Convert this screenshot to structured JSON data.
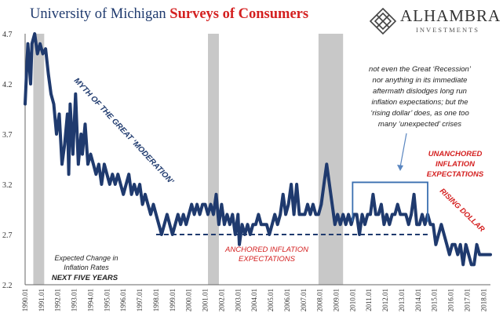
{
  "header": {
    "title_part1": "University of Michigan ",
    "title_part2": "Surveys of Consumers"
  },
  "logo": {
    "name": "ALHAMBRA",
    "subtitle": "INVESTMENTS",
    "icon": "diamond-lattice-icon"
  },
  "colors": {
    "series": "#1f3a6e",
    "recession": "#c8c8c8",
    "annotation_red": "#d42020",
    "bracket": "#3a6fb0",
    "arrow": "#5a86c0"
  },
  "chart_data": {
    "type": "line",
    "ylim": [
      2.2,
      4.7
    ],
    "yticks": [
      "2.2",
      "2.7",
      "3.2",
      "3.7",
      "4.2",
      "4.7"
    ],
    "xlim": [
      "1990-01",
      "2018-06"
    ],
    "xtick_labels": [
      "1990.01",
      "1991.01",
      "1992.01",
      "1993.01",
      "1994.01",
      "1995.01",
      "1996.01",
      "1997.01",
      "1998.01",
      "1999.01",
      "2000.01",
      "2001.01",
      "2002.01",
      "2003.01",
      "2004.01",
      "2005.01",
      "2006.01",
      "2007.01",
      "2008.01",
      "2009.01",
      "2010.01",
      "2011.01",
      "2012.01",
      "2013.01",
      "2014.01",
      "2015.01",
      "2016.01",
      "2017.01",
      "2018.01"
    ],
    "recessions": [
      [
        "1990-07",
        "1991-03"
      ],
      [
        "2001-03",
        "2001-11"
      ],
      [
        "2007-12",
        "2009-06"
      ]
    ],
    "series": [
      {
        "values": [
          [
            "1990-01",
            4.0
          ],
          [
            "1990-03",
            4.6
          ],
          [
            "1990-05",
            4.2
          ],
          [
            "1990-06",
            4.6
          ],
          [
            "1990-08",
            4.7
          ],
          [
            "1990-10",
            4.5
          ],
          [
            "1990-12",
            4.6
          ],
          [
            "1991-02",
            4.5
          ],
          [
            "1991-04",
            4.55
          ],
          [
            "1991-06",
            4.3
          ],
          [
            "1991-08",
            4.1
          ],
          [
            "1991-10",
            4.0
          ],
          [
            "1991-12",
            3.7
          ],
          [
            "1992-02",
            3.9
          ],
          [
            "1992-04",
            3.4
          ],
          [
            "1992-06",
            3.6
          ],
          [
            "1992-08",
            3.9
          ],
          [
            "1992-09",
            3.3
          ],
          [
            "1992-10",
            4.0
          ],
          [
            "1992-12",
            3.5
          ],
          [
            "1993-02",
            4.1
          ],
          [
            "1993-04",
            3.4
          ],
          [
            "1993-06",
            3.7
          ],
          [
            "1993-07",
            3.5
          ],
          [
            "1993-09",
            3.8
          ],
          [
            "1993-11",
            3.4
          ],
          [
            "1994-01",
            3.5
          ],
          [
            "1994-03",
            3.4
          ],
          [
            "1994-05",
            3.3
          ],
          [
            "1994-07",
            3.4
          ],
          [
            "1994-09",
            3.2
          ],
          [
            "1994-11",
            3.4
          ],
          [
            "1995-01",
            3.3
          ],
          [
            "1995-03",
            3.2
          ],
          [
            "1995-05",
            3.3
          ],
          [
            "1995-07",
            3.2
          ],
          [
            "1995-09",
            3.3
          ],
          [
            "1995-11",
            3.2
          ],
          [
            "1996-01",
            3.1
          ],
          [
            "1996-03",
            3.2
          ],
          [
            "1996-05",
            3.3
          ],
          [
            "1996-07",
            3.1
          ],
          [
            "1996-09",
            3.2
          ],
          [
            "1996-11",
            3.1
          ],
          [
            "1997-01",
            3.2
          ],
          [
            "1997-03",
            3.0
          ],
          [
            "1997-05",
            3.1
          ],
          [
            "1997-07",
            3.0
          ],
          [
            "1997-09",
            2.9
          ],
          [
            "1997-11",
            3.0
          ],
          [
            "1998-01",
            2.9
          ],
          [
            "1998-03",
            2.8
          ],
          [
            "1998-05",
            2.7
          ],
          [
            "1998-07",
            2.8
          ],
          [
            "1998-09",
            2.9
          ],
          [
            "1998-11",
            2.8
          ],
          [
            "1999-01",
            2.7
          ],
          [
            "1999-03",
            2.8
          ],
          [
            "1999-05",
            2.9
          ],
          [
            "1999-07",
            2.8
          ],
          [
            "1999-09",
            2.9
          ],
          [
            "1999-11",
            2.8
          ],
          [
            "2000-01",
            2.9
          ],
          [
            "2000-03",
            3.0
          ],
          [
            "2000-05",
            2.9
          ],
          [
            "2000-07",
            3.0
          ],
          [
            "2000-09",
            2.9
          ],
          [
            "2000-11",
            3.0
          ],
          [
            "2001-01",
            3.0
          ],
          [
            "2001-03",
            2.9
          ],
          [
            "2001-05",
            3.0
          ],
          [
            "2001-07",
            2.9
          ],
          [
            "2001-09",
            3.1
          ],
          [
            "2001-11",
            2.8
          ],
          [
            "2002-01",
            3.0
          ],
          [
            "2002-03",
            2.8
          ],
          [
            "2002-05",
            2.9
          ],
          [
            "2002-07",
            2.8
          ],
          [
            "2002-09",
            2.9
          ],
          [
            "2002-11",
            2.7
          ],
          [
            "2003-01",
            2.9
          ],
          [
            "2003-02",
            2.6
          ],
          [
            "2003-04",
            2.8
          ],
          [
            "2003-06",
            2.7
          ],
          [
            "2003-08",
            2.8
          ],
          [
            "2003-10",
            2.7
          ],
          [
            "2003-12",
            2.8
          ],
          [
            "2004-02",
            2.8
          ],
          [
            "2004-04",
            2.9
          ],
          [
            "2004-06",
            2.8
          ],
          [
            "2004-08",
            2.8
          ],
          [
            "2004-10",
            2.8
          ],
          [
            "2004-12",
            2.7
          ],
          [
            "2005-02",
            2.8
          ],
          [
            "2005-04",
            2.9
          ],
          [
            "2005-06",
            2.8
          ],
          [
            "2005-08",
            2.9
          ],
          [
            "2005-10",
            3.1
          ],
          [
            "2005-12",
            2.9
          ],
          [
            "2006-02",
            3.0
          ],
          [
            "2006-04",
            3.2
          ],
          [
            "2006-06",
            2.9
          ],
          [
            "2006-08",
            3.2
          ],
          [
            "2006-10",
            2.9
          ],
          [
            "2006-12",
            2.9
          ],
          [
            "2007-02",
            2.9
          ],
          [
            "2007-04",
            3.0
          ],
          [
            "2007-06",
            2.9
          ],
          [
            "2007-08",
            3.0
          ],
          [
            "2007-10",
            2.9
          ],
          [
            "2007-12",
            2.9
          ],
          [
            "2008-02",
            3.0
          ],
          [
            "2008-04",
            3.2
          ],
          [
            "2008-06",
            3.4
          ],
          [
            "2008-08",
            3.2
          ],
          [
            "2008-10",
            3.0
          ],
          [
            "2008-12",
            2.8
          ],
          [
            "2009-02",
            2.9
          ],
          [
            "2009-04",
            2.8
          ],
          [
            "2009-06",
            2.9
          ],
          [
            "2009-08",
            2.8
          ],
          [
            "2009-10",
            2.9
          ],
          [
            "2009-12",
            2.8
          ],
          [
            "2010-02",
            2.9
          ],
          [
            "2010-04",
            2.9
          ],
          [
            "2010-06",
            2.7
          ],
          [
            "2010-08",
            2.9
          ],
          [
            "2010-10",
            2.8
          ],
          [
            "2010-12",
            2.9
          ],
          [
            "2011-02",
            2.9
          ],
          [
            "2011-04",
            3.1
          ],
          [
            "2011-06",
            2.9
          ],
          [
            "2011-08",
            2.9
          ],
          [
            "2011-10",
            3.0
          ],
          [
            "2011-12",
            2.8
          ],
          [
            "2012-02",
            2.9
          ],
          [
            "2012-04",
            2.8
          ],
          [
            "2012-06",
            2.9
          ],
          [
            "2012-08",
            2.9
          ],
          [
            "2012-10",
            3.0
          ],
          [
            "2012-12",
            2.9
          ],
          [
            "2013-02",
            2.9
          ],
          [
            "2013-04",
            2.9
          ],
          [
            "2013-06",
            2.8
          ],
          [
            "2013-08",
            2.9
          ],
          [
            "2013-10",
            3.1
          ],
          [
            "2013-12",
            2.8
          ],
          [
            "2014-02",
            2.8
          ],
          [
            "2014-04",
            2.9
          ],
          [
            "2014-06",
            2.8
          ],
          [
            "2014-08",
            2.9
          ],
          [
            "2014-10",
            2.8
          ],
          [
            "2014-12",
            2.8
          ],
          [
            "2015-02",
            2.6
          ],
          [
            "2015-04",
            2.7
          ],
          [
            "2015-06",
            2.8
          ],
          [
            "2015-08",
            2.7
          ],
          [
            "2015-10",
            2.6
          ],
          [
            "2015-12",
            2.5
          ],
          [
            "2016-02",
            2.6
          ],
          [
            "2016-04",
            2.6
          ],
          [
            "2016-06",
            2.5
          ],
          [
            "2016-08",
            2.6
          ],
          [
            "2016-10",
            2.4
          ],
          [
            "2016-12",
            2.6
          ],
          [
            "2017-02",
            2.5
          ],
          [
            "2017-04",
            2.4
          ],
          [
            "2017-06",
            2.4
          ],
          [
            "2017-08",
            2.6
          ],
          [
            "2017-10",
            2.5
          ],
          [
            "2017-12",
            2.5
          ],
          [
            "2018-02",
            2.5
          ],
          [
            "2018-04",
            2.5
          ],
          [
            "2018-06",
            2.5
          ]
        ]
      }
    ],
    "reference_lines": [
      {
        "from": "1998-01",
        "to": "2014-10",
        "y": 2.7,
        "style": "dashed"
      }
    ],
    "bracket": {
      "from": "2010-01",
      "to": "2014-08",
      "y": 3.22,
      "bottom": 2.83
    },
    "annotations": {
      "myth": "MYTH OF THE GREAT ‘MODERATION’",
      "anchored_line1": "ANCHORED INFLATION",
      "anchored_line2": "EXPECTATIONS",
      "unanchored_line1": "UNANCHORED",
      "unanchored_line2": "INFLATION",
      "unanchored_line3": "EXPECTATIONS",
      "rising_dollar": "RISING DOLLAR",
      "note_lines": [
        "not even the Great ‘Recession’",
        "nor anything in its immediate",
        "aftermath dislodges long run",
        "inflation expectations; but the",
        "‘rising dollar’ does, as one too",
        "many ‘unexpected’ crises"
      ],
      "legend_line1": "Expected Change in",
      "legend_line2": "Inflation Rates",
      "legend_line3": "NEXT FIVE YEARS"
    }
  }
}
